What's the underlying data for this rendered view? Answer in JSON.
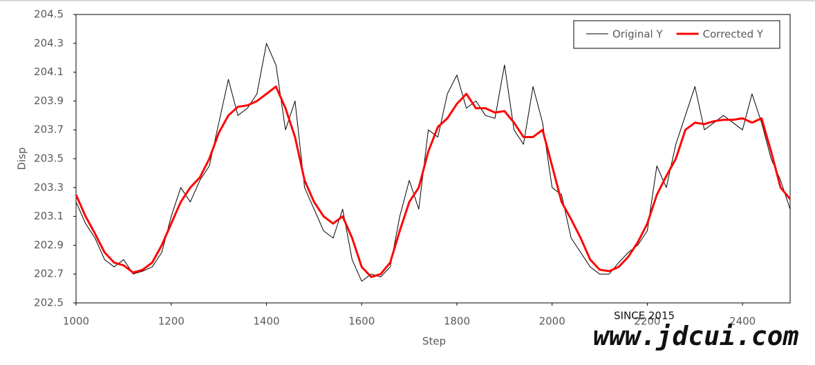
{
  "chart_data": {
    "type": "line",
    "xlabel": "Step",
    "ylabel": "Disp",
    "x": [
      1000,
      1020,
      1040,
      1060,
      1080,
      1100,
      1120,
      1140,
      1160,
      1180,
      1200,
      1220,
      1240,
      1260,
      1280,
      1300,
      1320,
      1340,
      1360,
      1380,
      1400,
      1420,
      1440,
      1460,
      1480,
      1500,
      1520,
      1540,
      1560,
      1580,
      1600,
      1620,
      1640,
      1660,
      1680,
      1700,
      1720,
      1740,
      1760,
      1780,
      1800,
      1820,
      1840,
      1860,
      1880,
      1900,
      1920,
      1940,
      1960,
      1980,
      2000,
      2020,
      2040,
      2060,
      2080,
      2100,
      2120,
      2140,
      2160,
      2180,
      2200,
      2220,
      2240,
      2260,
      2280,
      2300,
      2320,
      2340,
      2360,
      2380,
      2400,
      2420,
      2440,
      2460,
      2480,
      2500
    ],
    "series": [
      {
        "name": "Original Y",
        "color": "#000000",
        "width": 1,
        "values": [
          203.2,
          203.05,
          202.95,
          202.8,
          202.75,
          202.8,
          202.7,
          202.72,
          202.75,
          202.85,
          203.1,
          203.3,
          203.2,
          203.35,
          203.45,
          203.75,
          204.05,
          203.8,
          203.85,
          203.95,
          204.3,
          204.15,
          203.7,
          203.9,
          203.3,
          203.15,
          203.0,
          202.95,
          203.15,
          202.8,
          202.65,
          202.7,
          202.68,
          202.75,
          203.1,
          203.35,
          203.15,
          203.7,
          203.65,
          203.95,
          204.08,
          203.85,
          203.9,
          203.8,
          203.78,
          204.15,
          203.7,
          203.6,
          204.0,
          203.75,
          203.3,
          203.25,
          202.95,
          202.85,
          202.75,
          202.7,
          202.7,
          202.78,
          202.85,
          202.9,
          203.0,
          203.45,
          203.3,
          203.6,
          203.8,
          204.0,
          203.7,
          203.75,
          203.8,
          203.75,
          203.7,
          203.95,
          203.75,
          203.5,
          203.35,
          203.15
        ]
      },
      {
        "name": "Corrected Y",
        "color": "#ff0000",
        "width": 3,
        "values": [
          203.25,
          203.1,
          202.98,
          202.85,
          202.78,
          202.76,
          202.71,
          202.73,
          202.78,
          202.9,
          203.05,
          203.2,
          203.3,
          203.37,
          203.5,
          203.68,
          203.8,
          203.86,
          203.87,
          203.9,
          203.95,
          204.0,
          203.85,
          203.65,
          203.35,
          203.2,
          203.1,
          203.05,
          203.1,
          202.95,
          202.75,
          202.68,
          202.7,
          202.78,
          203.0,
          203.2,
          203.3,
          203.55,
          203.72,
          203.78,
          203.88,
          203.95,
          203.85,
          203.85,
          203.82,
          203.83,
          203.75,
          203.65,
          203.65,
          203.7,
          203.45,
          203.2,
          203.08,
          202.95,
          202.8,
          202.73,
          202.72,
          202.75,
          202.82,
          202.92,
          203.05,
          203.25,
          203.38,
          203.5,
          203.7,
          203.75,
          203.74,
          203.76,
          203.77,
          203.77,
          203.78,
          203.75,
          203.78,
          203.55,
          203.3,
          203.22
        ]
      }
    ],
    "xlim": [
      1000,
      2500
    ],
    "xticks": [
      1000,
      1200,
      1400,
      1600,
      1800,
      2000,
      2200,
      2400
    ],
    "ylim": [
      202.5,
      204.5
    ],
    "yticks": [
      202.5,
      202.7,
      202.9,
      203.1,
      203.3,
      203.5,
      203.7,
      203.9,
      204.1,
      204.3,
      204.5
    ],
    "legend": "top-right",
    "watermark": {
      "since": "SINCE 2015",
      "url": "www.jdcui.com"
    }
  }
}
